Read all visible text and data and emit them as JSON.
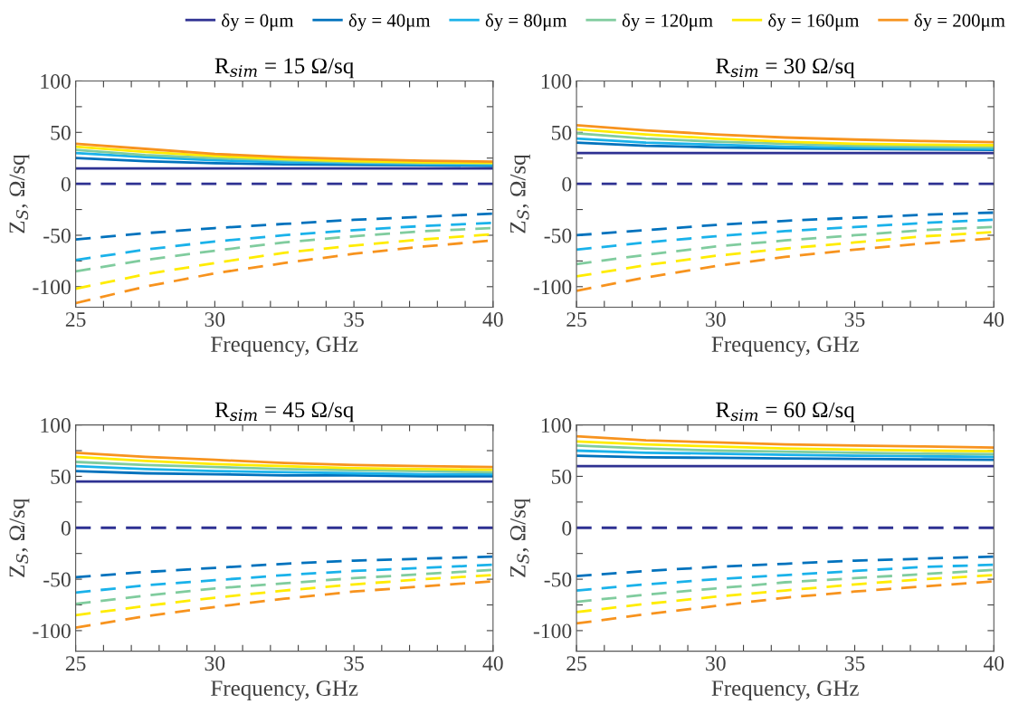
{
  "chart_data": [
    {
      "type": "line",
      "title": "R$_{sim}$ = 15 Ω/sq",
      "xlabel": "Frequency, GHz",
      "ylabel": "Z$_{S}$, Ω/sq",
      "legend": "top",
      "x": [
        25,
        27.5,
        30,
        32.5,
        35,
        37.5,
        40
      ],
      "xlim": [
        25,
        40
      ],
      "ylim": [
        -120,
        100
      ],
      "xticks": [
        25,
        {
          "value": 26,
          "label": null
        },
        {
          "value": 27,
          "label": null
        },
        {
          "value": 28,
          "label": null
        },
        {
          "value": 29,
          "label": null
        },
        30,
        {
          "value": 31,
          "label": null
        },
        {
          "value": 32,
          "label": null
        },
        {
          "value": 33,
          "label": null
        },
        {
          "value": 34,
          "label": null
        },
        35,
        {
          "value": 36,
          "label": null
        },
        {
          "value": 37,
          "label": null
        },
        {
          "value": 38,
          "label": null
        },
        {
          "value": 39,
          "label": null
        },
        40
      ],
      "yticks": [
        {
          "value": -100,
          "label": "-100"
        },
        {
          "value": -75,
          "label": null
        },
        {
          "value": -50,
          "label": "-50"
        },
        {
          "value": -25,
          "label": null
        },
        0,
        {
          "value": 25,
          "label": null
        },
        50,
        {
          "value": 75,
          "label": null
        },
        100
      ],
      "series": [
        {
          "name": "δy = 0μm",
          "color": "#2e3192",
          "line_style": "solid",
          "values": [
            15,
            15,
            15,
            15,
            15,
            15,
            15
          ]
        },
        {
          "name": "δy = 40μm",
          "color": "#0072bd",
          "line_style": "solid",
          "values": [
            25,
            22,
            20,
            19,
            18.5,
            18,
            17.5
          ]
        },
        {
          "name": "δy = 80μm",
          "color": "#1ab2ea",
          "line_style": "solid",
          "values": [
            30,
            26,
            23,
            21,
            20,
            19,
            18.5
          ]
        },
        {
          "name": "δy = 120μm",
          "color": "#80cc9e",
          "line_style": "solid",
          "values": [
            33,
            28,
            25,
            23,
            21,
            20,
            19.5
          ]
        },
        {
          "name": "δy = 160μm",
          "color": "#ffec00",
          "line_style": "solid",
          "values": [
            36,
            31,
            27,
            24,
            22,
            21,
            20.5
          ]
        },
        {
          "name": "δy = 200μm",
          "color": "#f7931e",
          "line_style": "solid",
          "values": [
            39,
            34,
            29,
            26,
            24,
            22.5,
            21.5
          ]
        },
        {
          "color": "#2e3192",
          "line_style": "dashed",
          "values": [
            0,
            0,
            0,
            0,
            0,
            0,
            0
          ]
        },
        {
          "color": "#0072bd",
          "line_style": "dashed",
          "values": [
            -54,
            -48,
            -43,
            -39,
            -35,
            -32,
            -29
          ]
        },
        {
          "color": "#1ab2ea",
          "line_style": "dashed",
          "values": [
            -74,
            -64,
            -56,
            -50,
            -45,
            -41,
            -38
          ]
        },
        {
          "color": "#80cc9e",
          "line_style": "dashed",
          "values": [
            -85,
            -74,
            -65,
            -57,
            -51,
            -46,
            -43
          ]
        },
        {
          "color": "#ffec00",
          "line_style": "dashed",
          "values": [
            -102,
            -88,
            -77,
            -67,
            -60,
            -54,
            -49
          ]
        },
        {
          "color": "#f7931e",
          "line_style": "dashed",
          "values": [
            -116,
            -100,
            -87,
            -77,
            -68,
            -61,
            -55
          ]
        }
      ]
    },
    {
      "type": "line",
      "title": "R$_{sim}$ = 30 Ω/sq",
      "xlabel": "Frequency, GHz",
      "ylabel": "Z$_{S}$, Ω/sq",
      "x": [
        25,
        27.5,
        30,
        32.5,
        35,
        37.5,
        40
      ],
      "xlim": [
        25,
        40
      ],
      "ylim": [
        -120,
        100
      ],
      "xticks": [
        25,
        {
          "value": 26,
          "label": null
        },
        {
          "value": 27,
          "label": null
        },
        {
          "value": 28,
          "label": null
        },
        {
          "value": 29,
          "label": null
        },
        30,
        {
          "value": 31,
          "label": null
        },
        {
          "value": 32,
          "label": null
        },
        {
          "value": 33,
          "label": null
        },
        {
          "value": 34,
          "label": null
        },
        35,
        {
          "value": 36,
          "label": null
        },
        {
          "value": 37,
          "label": null
        },
        {
          "value": 38,
          "label": null
        },
        {
          "value": 39,
          "label": null
        },
        40
      ],
      "yticks": [
        {
          "value": -100,
          "label": "-100"
        },
        {
          "value": -75,
          "label": null
        },
        {
          "value": -50,
          "label": "-50"
        },
        {
          "value": -25,
          "label": null
        },
        0,
        {
          "value": 25,
          "label": null
        },
        50,
        {
          "value": 75,
          "label": null
        },
        100
      ],
      "series": [
        {
          "color": "#2e3192",
          "line_style": "solid",
          "values": [
            30,
            30,
            30,
            30,
            30,
            30,
            30
          ]
        },
        {
          "color": "#0072bd",
          "line_style": "solid",
          "values": [
            40,
            37,
            35.5,
            34.5,
            34,
            33.5,
            33
          ]
        },
        {
          "color": "#1ab2ea",
          "line_style": "solid",
          "values": [
            44,
            40,
            38,
            36,
            35,
            34.5,
            34
          ]
        },
        {
          "color": "#80cc9e",
          "line_style": "solid",
          "values": [
            49,
            44,
            41,
            39,
            37,
            36,
            35.5
          ]
        },
        {
          "color": "#ffec00",
          "line_style": "solid",
          "values": [
            53,
            48,
            44,
            41,
            39,
            38,
            37.5
          ]
        },
        {
          "color": "#f7931e",
          "line_style": "solid",
          "values": [
            57,
            52,
            48,
            45,
            43,
            41.5,
            40.5
          ]
        },
        {
          "color": "#2e3192",
          "line_style": "dashed",
          "values": [
            0,
            0,
            0,
            0,
            0,
            0,
            0
          ]
        },
        {
          "color": "#0072bd",
          "line_style": "dashed",
          "values": [
            -50,
            -45,
            -40,
            -36,
            -33,
            -30,
            -28
          ]
        },
        {
          "color": "#1ab2ea",
          "line_style": "dashed",
          "values": [
            -64,
            -57,
            -51,
            -46,
            -42,
            -38,
            -35
          ]
        },
        {
          "color": "#80cc9e",
          "line_style": "dashed",
          "values": [
            -78,
            -69,
            -61,
            -55,
            -50,
            -45,
            -42
          ]
        },
        {
          "color": "#ffec00",
          "line_style": "dashed",
          "values": [
            -90,
            -79,
            -70,
            -63,
            -57,
            -51,
            -47
          ]
        },
        {
          "color": "#f7931e",
          "line_style": "dashed",
          "values": [
            -104,
            -91,
            -80,
            -71,
            -64,
            -58,
            -53
          ]
        }
      ]
    },
    {
      "type": "line",
      "title": "R$_{sim}$ = 45 Ω/sq",
      "xlabel": "Frequency, GHz",
      "ylabel": "Z$_{S}$, Ω/sq",
      "x": [
        25,
        27.5,
        30,
        32.5,
        35,
        37.5,
        40
      ],
      "xlim": [
        25,
        40
      ],
      "ylim": [
        -120,
        100
      ],
      "xticks": [
        25,
        {
          "value": 26,
          "label": null
        },
        {
          "value": 27,
          "label": null
        },
        {
          "value": 28,
          "label": null
        },
        {
          "value": 29,
          "label": null
        },
        30,
        {
          "value": 31,
          "label": null
        },
        {
          "value": 32,
          "label": null
        },
        {
          "value": 33,
          "label": null
        },
        {
          "value": 34,
          "label": null
        },
        35,
        {
          "value": 36,
          "label": null
        },
        {
          "value": 37,
          "label": null
        },
        {
          "value": 38,
          "label": null
        },
        {
          "value": 39,
          "label": null
        },
        40
      ],
      "yticks": [
        {
          "value": -100,
          "label": "-100"
        },
        {
          "value": -75,
          "label": null
        },
        {
          "value": -50,
          "label": "-50"
        },
        {
          "value": -25,
          "label": null
        },
        0,
        {
          "value": 25,
          "label": null
        },
        50,
        {
          "value": 75,
          "label": null
        },
        100
      ],
      "series": [
        {
          "color": "#2e3192",
          "line_style": "solid",
          "values": [
            45,
            45,
            45,
            45,
            45,
            45,
            45
          ]
        },
        {
          "color": "#0072bd",
          "line_style": "solid",
          "values": [
            55,
            53,
            52,
            51,
            51,
            50,
            50
          ]
        },
        {
          "color": "#1ab2ea",
          "line_style": "solid",
          "values": [
            60,
            57,
            55,
            54,
            53,
            52,
            52
          ]
        },
        {
          "color": "#80cc9e",
          "line_style": "solid",
          "values": [
            64,
            61,
            59,
            57,
            56,
            55,
            54
          ]
        },
        {
          "color": "#ffec00",
          "line_style": "solid",
          "values": [
            69,
            65,
            62,
            60,
            58,
            57,
            56.5
          ]
        },
        {
          "color": "#f7931e",
          "line_style": "solid",
          "values": [
            73,
            69,
            66,
            63,
            61,
            60,
            59
          ]
        },
        {
          "color": "#2e3192",
          "line_style": "dashed",
          "values": [
            0,
            0,
            0,
            0,
            0,
            0,
            0
          ]
        },
        {
          "color": "#0072bd",
          "line_style": "dashed",
          "values": [
            -48,
            -43,
            -39,
            -35,
            -32,
            -30,
            -28
          ]
        },
        {
          "color": "#1ab2ea",
          "line_style": "dashed",
          "values": [
            -63,
            -56,
            -51,
            -46,
            -42,
            -39,
            -36
          ]
        },
        {
          "color": "#80cc9e",
          "line_style": "dashed",
          "values": [
            -74,
            -66,
            -59,
            -54,
            -49,
            -45,
            -41
          ]
        },
        {
          "color": "#ffec00",
          "line_style": "dashed",
          "values": [
            -85,
            -76,
            -68,
            -61,
            -55,
            -50,
            -46
          ]
        },
        {
          "color": "#f7931e",
          "line_style": "dashed",
          "values": [
            -97,
            -86,
            -77,
            -69,
            -62,
            -57,
            -52
          ]
        }
      ]
    },
    {
      "type": "line",
      "title": "R$_{sim}$ = 60 Ω/sq",
      "xlabel": "Frequency, GHz",
      "ylabel": "Z$_{S}$, Ω/sq",
      "x": [
        25,
        27.5,
        30,
        32.5,
        35,
        37.5,
        40
      ],
      "xlim": [
        25,
        40
      ],
      "ylim": [
        -120,
        100
      ],
      "xticks": [
        25,
        {
          "value": 26,
          "label": null
        },
        {
          "value": 27,
          "label": null
        },
        {
          "value": 28,
          "label": null
        },
        {
          "value": 29,
          "label": null
        },
        30,
        {
          "value": 31,
          "label": null
        },
        {
          "value": 32,
          "label": null
        },
        {
          "value": 33,
          "label": null
        },
        {
          "value": 34,
          "label": null
        },
        35,
        {
          "value": 36,
          "label": null
        },
        {
          "value": 37,
          "label": null
        },
        {
          "value": 38,
          "label": null
        },
        {
          "value": 39,
          "label": null
        },
        40
      ],
      "yticks": [
        {
          "value": -100,
          "label": "-100"
        },
        {
          "value": -75,
          "label": null
        },
        {
          "value": -50,
          "label": "-50"
        },
        {
          "value": -25,
          "label": null
        },
        0,
        {
          "value": 25,
          "label": null
        },
        50,
        {
          "value": 75,
          "label": null
        },
        100
      ],
      "series": [
        {
          "color": "#2e3192",
          "line_style": "solid",
          "values": [
            60,
            60,
            60,
            60,
            60,
            60,
            60
          ]
        },
        {
          "color": "#0072bd",
          "line_style": "solid",
          "values": [
            70,
            68.5,
            68,
            67.5,
            67,
            66.5,
            66
          ]
        },
        {
          "color": "#1ab2ea",
          "line_style": "solid",
          "values": [
            75,
            73,
            72,
            71,
            70,
            69.5,
            69
          ]
        },
        {
          "color": "#80cc9e",
          "line_style": "solid",
          "values": [
            80,
            77,
            75,
            74,
            73,
            72,
            71.5
          ]
        },
        {
          "color": "#ffec00",
          "line_style": "solid",
          "values": [
            84,
            81,
            79,
            77,
            76,
            75,
            74.5
          ]
        },
        {
          "color": "#f7931e",
          "line_style": "solid",
          "values": [
            89,
            85,
            83,
            81,
            80,
            79,
            78
          ]
        },
        {
          "color": "#2e3192",
          "line_style": "dashed",
          "values": [
            0,
            0,
            0,
            0,
            0,
            0,
            0
          ]
        },
        {
          "color": "#0072bd",
          "line_style": "dashed",
          "values": [
            -47,
            -42,
            -38,
            -35,
            -32,
            -30,
            -28
          ]
        },
        {
          "color": "#1ab2ea",
          "line_style": "dashed",
          "values": [
            -61,
            -55,
            -50,
            -46,
            -42,
            -38,
            -36
          ]
        },
        {
          "color": "#80cc9e",
          "line_style": "dashed",
          "values": [
            -72,
            -65,
            -59,
            -53,
            -49,
            -45,
            -41
          ]
        },
        {
          "color": "#ffec00",
          "line_style": "dashed",
          "values": [
            -82,
            -74,
            -67,
            -61,
            -55,
            -50,
            -46
          ]
        },
        {
          "color": "#f7931e",
          "line_style": "dashed",
          "values": [
            -93,
            -84,
            -76,
            -68,
            -62,
            -57,
            -52
          ]
        }
      ]
    }
  ]
}
